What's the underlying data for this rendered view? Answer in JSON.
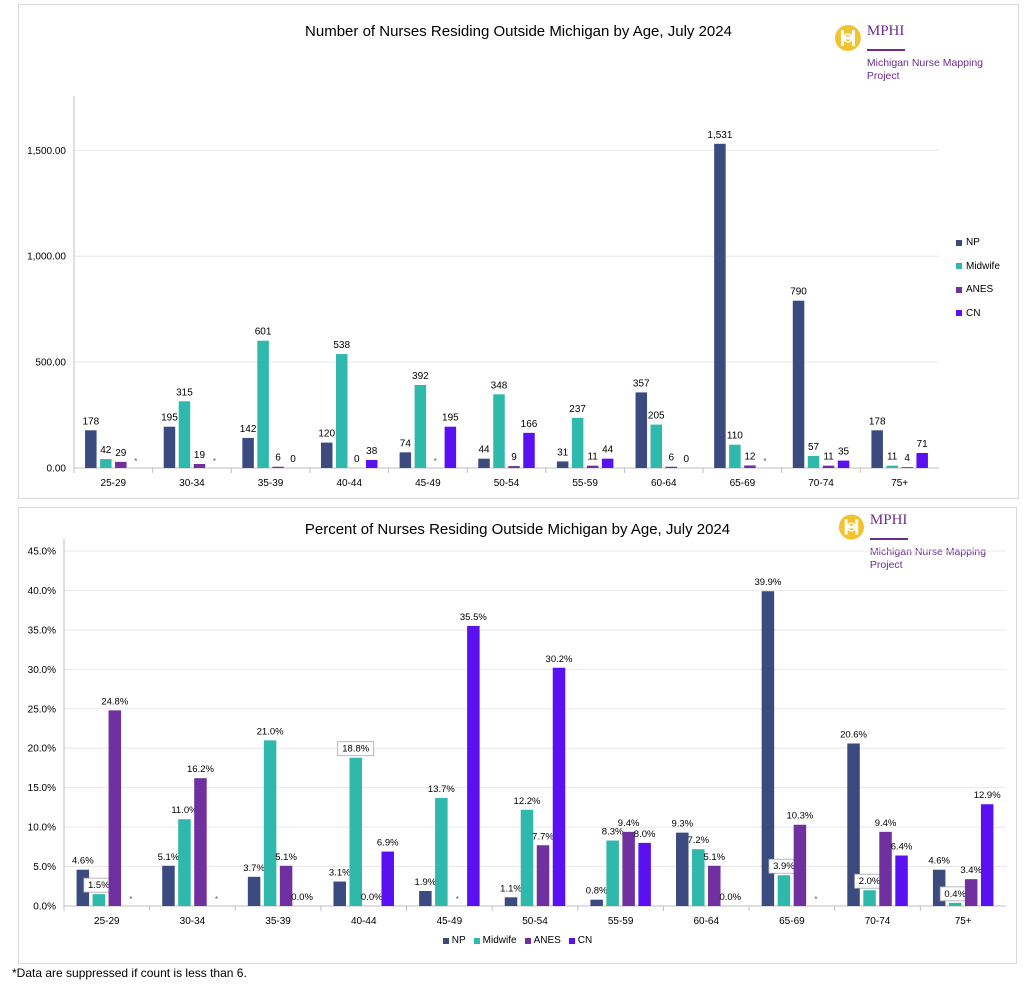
{
  "footnote": "*Data are suppressed if count is less than 6.",
  "logo": {
    "org": "MPHI",
    "project": "Michigan Nurse Mapping Project"
  },
  "colors": {
    "NP": "#3b4b80",
    "Midwife": "#2fb8ac",
    "ANES": "#7030a0",
    "CN": "#5a10f0"
  },
  "chart_data": [
    {
      "type": "bar",
      "title": "Number of Nurses Residing Outside Michigan by Age, July 2024",
      "categories": [
        "25-29",
        "30-34",
        "35-39",
        "40-44",
        "45-49",
        "50-54",
        "55-59",
        "60-64",
        "65-69",
        "70-74",
        "75+"
      ],
      "series": [
        {
          "name": "NP",
          "values": [
            178,
            195,
            142,
            120,
            74,
            44,
            31,
            357,
            1531,
            790,
            178
          ]
        },
        {
          "name": "Midwife",
          "values": [
            42,
            315,
            601,
            538,
            392,
            348,
            237,
            205,
            110,
            57,
            11
          ]
        },
        {
          "name": "ANES",
          "values": [
            29,
            19,
            6,
            0,
            null,
            9,
            11,
            6,
            12,
            11,
            4
          ]
        },
        {
          "name": "CN",
          "values": [
            null,
            null,
            0,
            38,
            195,
            166,
            44,
            0,
            null,
            35,
            71
          ]
        }
      ],
      "labels": [
        [
          "178",
          "195",
          "142",
          "120",
          "74",
          "44",
          "31",
          "357",
          "1,531",
          "790",
          "178"
        ],
        [
          "42",
          "315",
          "601",
          "538",
          "392",
          "348",
          "237",
          "205",
          "110",
          "57",
          "11"
        ],
        [
          "29",
          "19",
          "6",
          "0",
          "*",
          "9",
          "11",
          "6",
          "12",
          "11",
          "4"
        ],
        [
          "*",
          "*",
          "0",
          "38",
          "195",
          "166",
          "44",
          "0",
          "*",
          "35",
          "71"
        ]
      ],
      "yticks": [
        "0.00",
        "500.00",
        "1,000.00",
        "1,500.00"
      ],
      "ytick_values": [
        0,
        500,
        1000,
        1500
      ],
      "ylim": [
        0,
        1700
      ],
      "legend": [
        "NP",
        "Midwife",
        "ANES",
        "CN"
      ],
      "legend_position": "right",
      "grid": true
    },
    {
      "type": "bar",
      "title": "Percent of Nurses Residing Outside Michigan by Age, July 2024",
      "categories": [
        "25-29",
        "30-34",
        "35-39",
        "40-44",
        "45-49",
        "50-54",
        "55-59",
        "60-64",
        "65-69",
        "70-74",
        "75+"
      ],
      "series": [
        {
          "name": "NP",
          "values": [
            4.6,
            5.1,
            3.7,
            3.1,
            1.9,
            1.1,
            0.8,
            9.3,
            39.9,
            20.6,
            4.6
          ]
        },
        {
          "name": "Midwife",
          "values": [
            1.5,
            11.0,
            21.0,
            18.8,
            13.7,
            12.2,
            8.3,
            7.2,
            3.9,
            2.0,
            0.4
          ]
        },
        {
          "name": "ANES",
          "values": [
            24.8,
            16.2,
            5.1,
            0.0,
            null,
            7.7,
            9.4,
            5.1,
            10.3,
            9.4,
            3.4
          ]
        },
        {
          "name": "CN",
          "values": [
            null,
            null,
            0.0,
            6.9,
            35.5,
            30.2,
            8.0,
            0.0,
            null,
            6.4,
            12.9
          ]
        }
      ],
      "labels": [
        [
          "4.6%",
          "5.1%",
          "3.7%",
          "3.1%",
          "1.9%",
          "1.1%",
          "0.8%",
          "9.3%",
          "39.9%",
          "20.6%",
          "4.6%"
        ],
        [
          "1.5%",
          "11.0%",
          "21.0%",
          "18.8%",
          "13.7%",
          "12.2%",
          "8.3%",
          "7.2%",
          "3.9%",
          "2.0%",
          "0.4%"
        ],
        [
          "24.8%",
          "16.2%",
          "5.1%",
          "0.0%",
          "*",
          "7.7%",
          "9.4%",
          "5.1%",
          "10.3%",
          "9.4%",
          "3.4%"
        ],
        [
          "*",
          "*",
          "0.0%",
          "6.9%",
          "35.5%",
          "30.2%",
          "8.0%",
          "0.0%",
          "*",
          "6.4%",
          "12.9%"
        ]
      ],
      "yticks": [
        "0.0%",
        "5.0%",
        "10.0%",
        "15.0%",
        "20.0%",
        "25.0%",
        "30.0%",
        "35.0%",
        "40.0%",
        "45.0%"
      ],
      "ytick_values": [
        0,
        5,
        10,
        15,
        20,
        25,
        30,
        35,
        40,
        45
      ],
      "ylim": [
        0,
        45
      ],
      "legend": [
        "NP",
        "Midwife",
        "ANES",
        "CN"
      ],
      "legend_position": "bottom",
      "grid": true
    }
  ]
}
